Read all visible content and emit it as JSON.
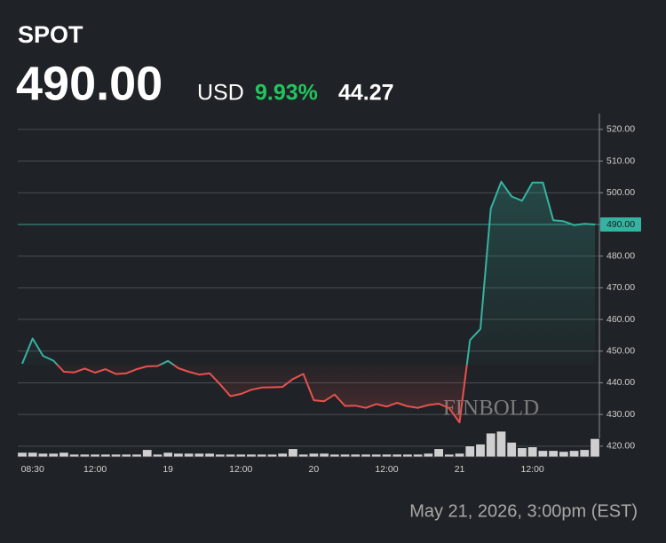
{
  "chart_data": {
    "type": "line",
    "title": "SPOT",
    "price": {
      "value": 490,
      "label": "490.00"
    },
    "currency": "USD",
    "change_percent": {
      "value": 9.93,
      "label": "9.93%"
    },
    "change": 44.27,
    "footer": "May 21, 2026, 3:00pm (EST)",
    "watermark": "FINBOLD",
    "categories": [
      null,
      "08:30",
      null,
      null,
      null,
      null,
      null,
      "12:00",
      null,
      null,
      null,
      null,
      null,
      null,
      "19",
      null,
      null,
      null,
      null,
      null,
      null,
      "12:00",
      null,
      null,
      null,
      null,
      null,
      null,
      "20",
      null,
      null,
      null,
      null,
      null,
      null,
      "12:00",
      null,
      null,
      null,
      null,
      null,
      null,
      "21",
      null,
      null,
      null,
      null,
      null,
      null,
      "12:00",
      null,
      null,
      null,
      null,
      null,
      null
    ],
    "series": [
      {
        "name": "Price",
        "color": "#35b2a0",
        "down_color": "#e8514e",
        "values": [
          446,
          454,
          448.5,
          447,
          443.5,
          443.3,
          444.5,
          443.2,
          444.3,
          442.8,
          443,
          444.3,
          445.2,
          445.3,
          446.9,
          444.6,
          443.5,
          442.6,
          443,
          439.5,
          435.8,
          436.5,
          437.8,
          438.5,
          438.6,
          438.7,
          441.2,
          442.8,
          434.5,
          434.2,
          436.3,
          432.7,
          432.8,
          432.1,
          433.3,
          432.5,
          433.7,
          432.6,
          432.1,
          433,
          433.4,
          432,
          427.5,
          453.5,
          457,
          495,
          503.5,
          498.8,
          497.5,
          503.2,
          503.2,
          491.3,
          491,
          489.8,
          490.2,
          490
        ]
      },
      {
        "name": "Volume",
        "color": "#cfcfcf",
        "values": [
          5,
          5,
          4,
          4,
          5,
          3,
          3,
          3,
          3,
          3,
          3,
          3,
          8,
          3,
          5,
          4,
          4,
          4,
          4,
          3,
          3,
          3,
          3,
          3,
          3,
          4,
          9,
          3,
          4,
          4,
          3,
          3,
          3,
          3,
          3,
          3,
          3,
          3,
          3,
          4,
          9,
          3,
          4,
          12,
          14,
          26,
          28,
          16,
          10,
          11,
          7,
          7,
          6,
          7,
          8,
          20
        ]
      }
    ],
    "ylim": [
      416.6,
      525
    ],
    "yticks": [
      {
        "value": 420,
        "label": "420.00"
      },
      {
        "value": 430,
        "label": "430.00"
      },
      {
        "value": 440,
        "label": "440.00"
      },
      {
        "value": 450,
        "label": "450.00"
      },
      {
        "value": 460,
        "label": "460.00"
      },
      {
        "value": 470,
        "label": "470.00"
      },
      {
        "value": 480,
        "label": "480.00"
      },
      {
        "value": 490,
        "label": "490.00"
      },
      {
        "value": 500,
        "label": "500.00"
      },
      {
        "value": 510,
        "label": "510.00"
      },
      {
        "value": 520,
        "label": "520.00"
      }
    ],
    "grid": true
  }
}
